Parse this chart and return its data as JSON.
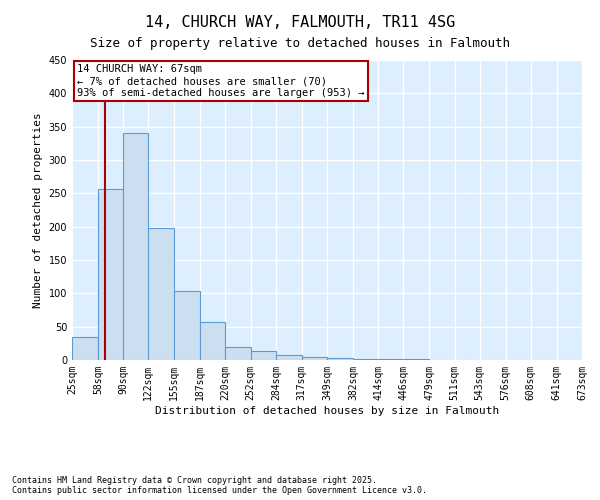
{
  "title": "14, CHURCH WAY, FALMOUTH, TR11 4SG",
  "subtitle": "Size of property relative to detached houses in Falmouth",
  "xlabel": "Distribution of detached houses by size in Falmouth",
  "ylabel": "Number of detached properties",
  "bar_color": "#ccdff0",
  "bar_edge_color": "#5b9bd5",
  "annotation_line1": "14 CHURCH WAY: 67sqm",
  "annotation_line2": "← 7% of detached houses are smaller (70)",
  "annotation_line3": "93% of semi-detached houses are larger (953) →",
  "annotation_box_color": "#aa0000",
  "property_line_x": 67,
  "property_line_color": "#aa0000",
  "bin_edges": [
    25,
    58,
    90,
    122,
    155,
    187,
    220,
    252,
    284,
    317,
    349,
    382,
    414,
    446,
    479,
    511,
    543,
    576,
    608,
    641,
    673
  ],
  "bar_heights": [
    35,
    257,
    340,
    198,
    103,
    57,
    20,
    13,
    8,
    5,
    3,
    2,
    1,
    1,
    0,
    0,
    0,
    0,
    0,
    0
  ],
  "ylim": [
    0,
    450
  ],
  "yticks": [
    0,
    50,
    100,
    150,
    200,
    250,
    300,
    350,
    400,
    450
  ],
  "footnote": "Contains HM Land Registry data © Crown copyright and database right 2025.\nContains public sector information licensed under the Open Government Licence v3.0.",
  "fig_bg_color": "#ffffff",
  "plot_bg_color": "#ddeeff",
  "grid_color": "#ffffff",
  "title_fontsize": 11,
  "subtitle_fontsize": 9,
  "xlabel_fontsize": 8,
  "ylabel_fontsize": 8,
  "tick_fontsize": 7,
  "footnote_fontsize": 6,
  "annot_fontsize": 7.5
}
